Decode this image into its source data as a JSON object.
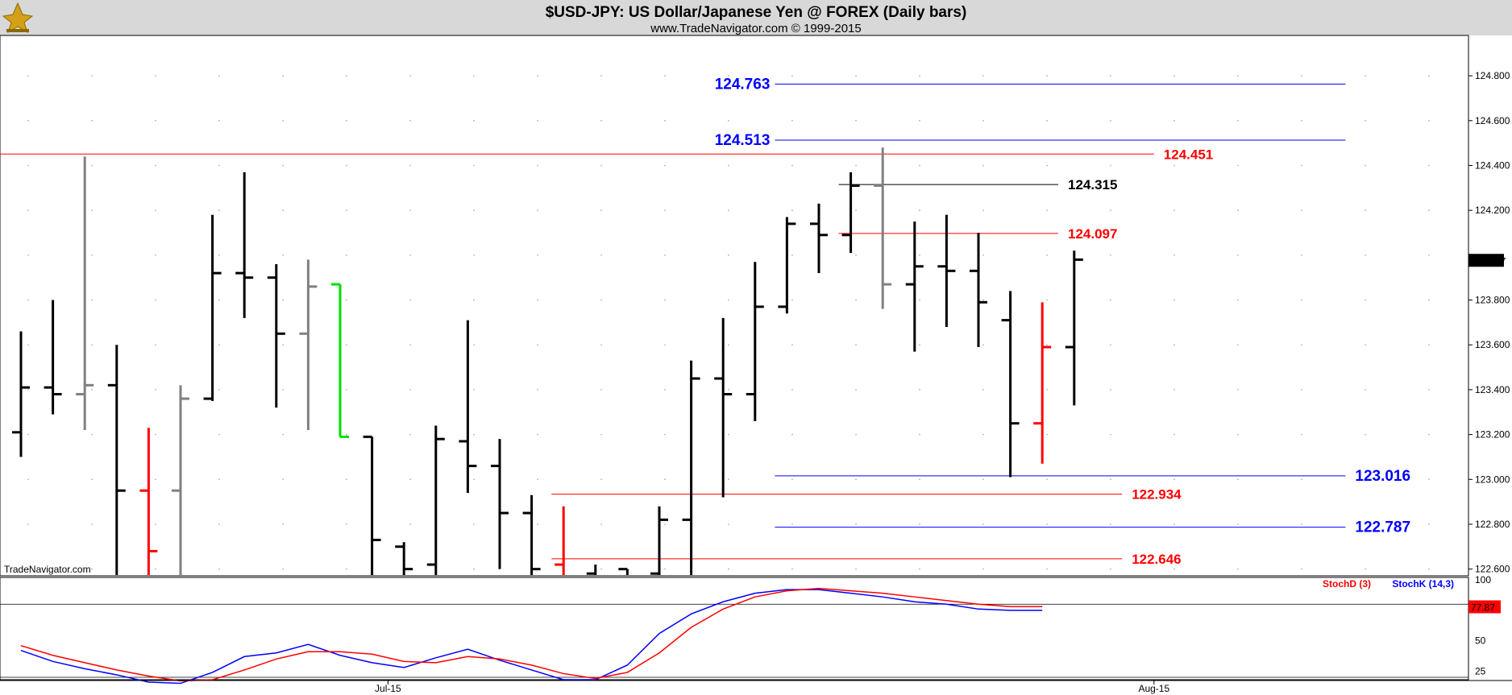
{
  "header": {
    "title": "$USD-JPY:  US Dollar/Japanese Yen @ FOREX  (Daily bars)",
    "subtitle": "www.TradeNavigator.com © 1999-2015",
    "watermark": "TradeNavigator.com",
    "logo_icon": "trade-navigator-logo-icon"
  },
  "colors": {
    "header_bg": "#d8d8d8",
    "black": "#000000",
    "gray": "#808080",
    "red": "#ff0000",
    "green": "#00dd00",
    "blue": "#0000ff",
    "dot_grid": "#b0b0b0"
  },
  "chart_data": [
    {
      "type": "ohlc",
      "grid": "dotted",
      "ylim": [
        122.57,
        124.98
      ],
      "yticks": [
        "124.800",
        "124.600",
        "124.400",
        "124.200",
        "123.800",
        "123.600",
        "123.400",
        "123.200",
        "123.000",
        "122.800",
        "122.600"
      ],
      "last_price": "123.977",
      "xticks": [
        {
          "label": "Jul-15",
          "bar": 11.5
        },
        {
          "label": "Aug-15",
          "bar": 35.5
        }
      ],
      "bars": [
        {
          "o": 123.21,
          "h": 123.66,
          "l": 123.1,
          "c": 123.41,
          "color": "black"
        },
        {
          "o": 123.41,
          "h": 123.8,
          "l": 123.29,
          "c": 123.38,
          "color": "black"
        },
        {
          "o": 123.38,
          "h": 124.44,
          "l": 123.22,
          "c": 123.42,
          "color": "gray"
        },
        {
          "o": 123.42,
          "h": 123.6,
          "l": 122.5,
          "c": 122.95,
          "color": "black"
        },
        {
          "o": 122.95,
          "h": 123.23,
          "l": 122.5,
          "c": 122.68,
          "color": "red"
        },
        {
          "o": 122.95,
          "h": 123.42,
          "l": 122.5,
          "c": 123.36,
          "color": "gray"
        },
        {
          "o": 123.36,
          "h": 124.18,
          "l": 123.35,
          "c": 123.92,
          "color": "black"
        },
        {
          "o": 123.92,
          "h": 124.37,
          "l": 123.72,
          "c": 123.9,
          "color": "black"
        },
        {
          "o": 123.9,
          "h": 123.96,
          "l": 123.32,
          "c": 123.65,
          "color": "black"
        },
        {
          "o": 123.65,
          "h": 123.98,
          "l": 123.22,
          "c": 123.86,
          "color": "gray"
        },
        {
          "o": 123.87,
          "h": 123.87,
          "l": 123.19,
          "c": 123.19,
          "color": "green"
        },
        {
          "o": 123.19,
          "h": 123.19,
          "l": 122.5,
          "c": 122.73,
          "color": "black"
        },
        {
          "o": 122.7,
          "h": 122.72,
          "l": 122.5,
          "c": 122.6,
          "color": "black"
        },
        {
          "o": 122.62,
          "h": 123.24,
          "l": 122.5,
          "c": 123.18,
          "color": "black"
        },
        {
          "o": 123.17,
          "h": 123.71,
          "l": 122.94,
          "c": 123.06,
          "color": "black"
        },
        {
          "o": 123.06,
          "h": 123.18,
          "l": 122.6,
          "c": 122.85,
          "color": "black"
        },
        {
          "o": 122.85,
          "h": 122.93,
          "l": 122.5,
          "c": 122.6,
          "color": "black"
        },
        {
          "o": 122.62,
          "h": 122.88,
          "l": 122.5,
          "c": 122.55,
          "color": "red"
        },
        {
          "o": 122.58,
          "h": 122.62,
          "l": 122.5,
          "c": 122.55,
          "color": "black"
        },
        {
          "o": 122.6,
          "h": 122.6,
          "l": 122.5,
          "c": 122.55,
          "color": "black"
        },
        {
          "o": 122.58,
          "h": 122.88,
          "l": 122.5,
          "c": 122.82,
          "color": "black"
        },
        {
          "o": 122.82,
          "h": 123.53,
          "l": 122.5,
          "c": 123.45,
          "color": "black"
        },
        {
          "o": 123.45,
          "h": 123.72,
          "l": 122.92,
          "c": 123.38,
          "color": "black"
        },
        {
          "o": 123.38,
          "h": 123.97,
          "l": 123.26,
          "c": 123.77,
          "color": "black"
        },
        {
          "o": 123.77,
          "h": 124.17,
          "l": 123.74,
          "c": 124.14,
          "color": "black"
        },
        {
          "o": 124.14,
          "h": 124.23,
          "l": 123.92,
          "c": 124.09,
          "color": "black"
        },
        {
          "o": 124.09,
          "h": 124.37,
          "l": 124.01,
          "c": 124.31,
          "color": "black"
        },
        {
          "o": 124.31,
          "h": 124.48,
          "l": 123.76,
          "c": 123.87,
          "color": "gray"
        },
        {
          "o": 123.87,
          "h": 124.15,
          "l": 123.57,
          "c": 123.95,
          "color": "black"
        },
        {
          "o": 123.95,
          "h": 124.18,
          "l": 123.68,
          "c": 123.93,
          "color": "black"
        },
        {
          "o": 123.93,
          "h": 124.1,
          "l": 123.59,
          "c": 123.79,
          "color": "black"
        },
        {
          "o": 123.71,
          "h": 123.84,
          "l": 123.01,
          "c": 123.25,
          "color": "black"
        },
        {
          "o": 123.25,
          "h": 123.79,
          "l": 123.07,
          "c": 123.59,
          "color": "red"
        },
        {
          "o": 123.59,
          "h": 124.02,
          "l": 123.33,
          "c": 123.98,
          "color": "black"
        }
      ],
      "levels": [
        {
          "value": 124.763,
          "label": "124.763",
          "color": "blue",
          "from_bar": 24,
          "to_bar": 41.5,
          "label_side": "left"
        },
        {
          "value": 124.513,
          "label": "124.513",
          "color": "blue",
          "from_bar": 24,
          "to_bar": 41.5,
          "label_side": "left"
        },
        {
          "value": 124.451,
          "label": "124.451",
          "color": "red",
          "from_bar": -1,
          "to_bar": 35.5,
          "label_side": "right"
        },
        {
          "value": 124.315,
          "label": "124.315",
          "color": "black",
          "from_bar": 26,
          "to_bar": 32.5,
          "label_side": "right"
        },
        {
          "value": 124.097,
          "label": "124.097",
          "color": "red",
          "from_bar": 26,
          "to_bar": 32.5,
          "label_side": "right"
        },
        {
          "value": 123.016,
          "label": "123.016",
          "color": "blue",
          "from_bar": 24,
          "to_bar": 41.5,
          "label_side": "right"
        },
        {
          "value": 122.934,
          "label": "122.934",
          "color": "red",
          "from_bar": 17,
          "to_bar": 34.5,
          "label_side": "right"
        },
        {
          "value": 122.787,
          "label": "122.787",
          "color": "blue",
          "from_bar": 24,
          "to_bar": 41.5,
          "label_side": "right"
        },
        {
          "value": 122.646,
          "label": "122.646",
          "color": "red",
          "from_bar": 17,
          "to_bar": 34.5,
          "label_side": "right"
        }
      ]
    },
    {
      "type": "line",
      "name": "Stochastics",
      "ylim": [
        18,
        102
      ],
      "yticks": [
        "100",
        "50",
        "25"
      ],
      "ref_lines": [
        80,
        20
      ],
      "last_value": "77.87",
      "legend": [
        {
          "name": "StochD (3)",
          "color": "red"
        },
        {
          "name": "StochK (14,3)",
          "color": "blue"
        }
      ],
      "series": [
        {
          "name": "StochK (14,3)",
          "color": "blue",
          "values": [
            42,
            33,
            27,
            22,
            16,
            15,
            24,
            37,
            40,
            47,
            38,
            32,
            28,
            36,
            43,
            34,
            26,
            18,
            18,
            30,
            56,
            72,
            82,
            89,
            92,
            92,
            89,
            86,
            82,
            80,
            76,
            75,
            75
          ]
        },
        {
          "name": "StochD (3)",
          "color": "red",
          "values": [
            46,
            38,
            32,
            26,
            21,
            17,
            18,
            26,
            35,
            41,
            41,
            39,
            33,
            32,
            37,
            35,
            30,
            23,
            19,
            24,
            40,
            61,
            76,
            86,
            91,
            93,
            91,
            89,
            86,
            83,
            80,
            78,
            78
          ]
        }
      ]
    }
  ]
}
